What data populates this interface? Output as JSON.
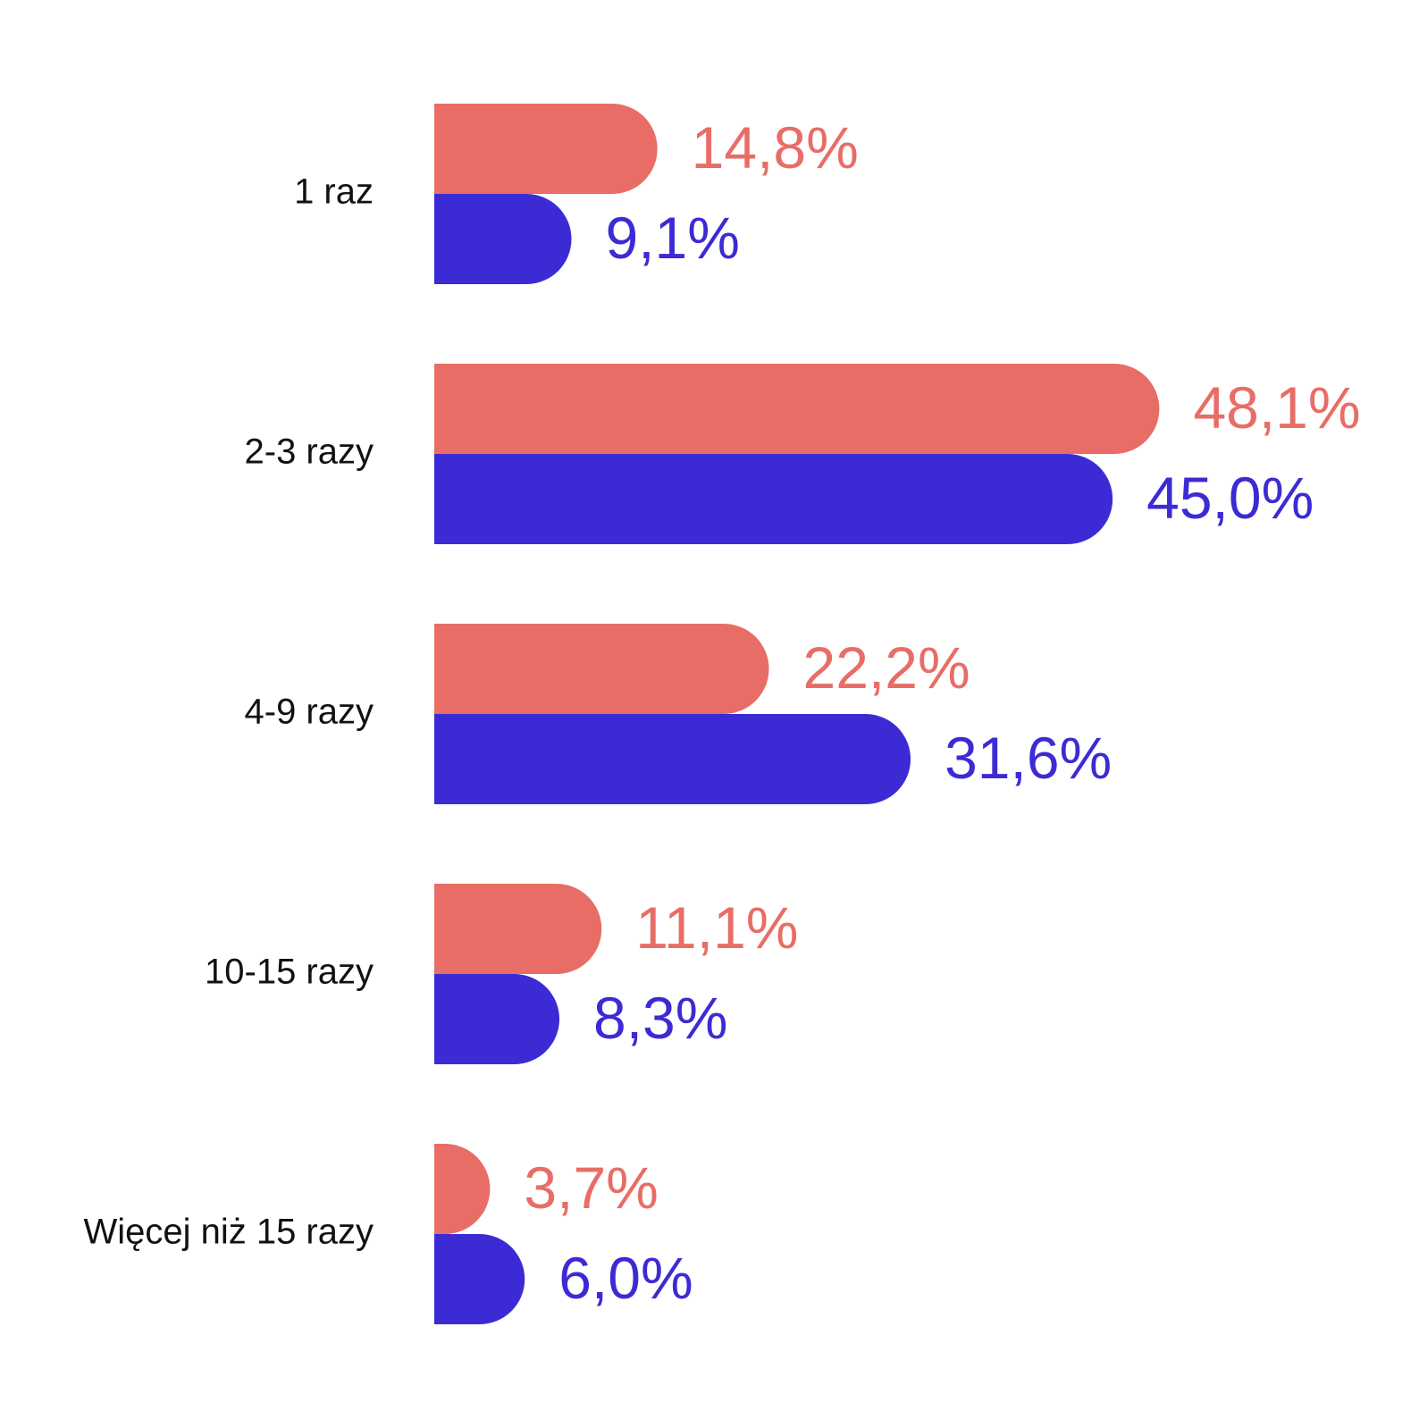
{
  "chart_data": {
    "type": "bar",
    "orientation": "horizontal",
    "categories": [
      "1 raz",
      "2-3 razy",
      "4-9 razy",
      "10-15 razy",
      "Więcej niż 15 razy"
    ],
    "series": [
      {
        "color": "#E86D66",
        "values": [
          14.8,
          48.1,
          22.2,
          11.1,
          3.7
        ],
        "labels": [
          "14,8%",
          "48,1%",
          "22,2%",
          "11,1%",
          "3,7%"
        ]
      },
      {
        "color": "#3C2BD4",
        "values": [
          9.1,
          45.0,
          31.6,
          8.3,
          6.0
        ],
        "labels": [
          "9,1%",
          "45,0%",
          "31,6%",
          "8,3%",
          "6,0%"
        ]
      }
    ],
    "xlim": [
      0,
      50
    ],
    "grid": false,
    "axes_visible": false,
    "legend": "none"
  }
}
